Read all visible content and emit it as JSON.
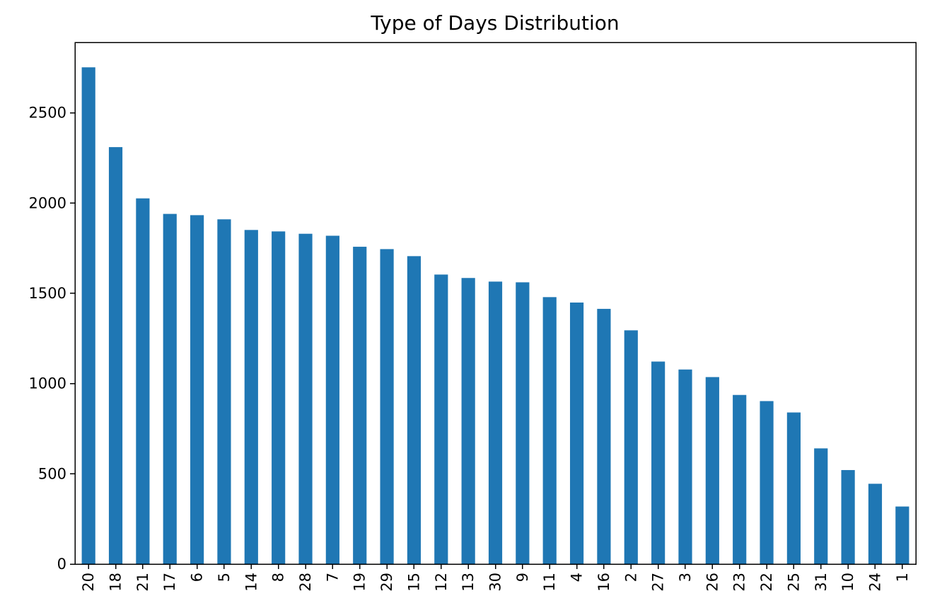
{
  "chart_data": {
    "type": "bar",
    "title": "Type of Days Distribution",
    "xlabel": "",
    "ylabel": "",
    "categories": [
      "20",
      "18",
      "21",
      "17",
      "6",
      "5",
      "14",
      "8",
      "28",
      "7",
      "19",
      "29",
      "15",
      "12",
      "13",
      "30",
      "9",
      "11",
      "4",
      "16",
      "2",
      "27",
      "3",
      "26",
      "23",
      "22",
      "25",
      "31",
      "10",
      "24",
      "1"
    ],
    "values": [
      2752,
      2310,
      2026,
      1940,
      1933,
      1910,
      1851,
      1843,
      1830,
      1819,
      1758,
      1745,
      1706,
      1604,
      1585,
      1565,
      1561,
      1479,
      1449,
      1414,
      1295,
      1122,
      1078,
      1036,
      937,
      903,
      840,
      641,
      521,
      445,
      319
    ],
    "ylim": [
      0,
      2890
    ],
    "yticks": [
      0,
      500,
      1000,
      1500,
      2000,
      2500
    ],
    "bar_color": "#1f77b4",
    "grid": false,
    "legend": "none"
  }
}
